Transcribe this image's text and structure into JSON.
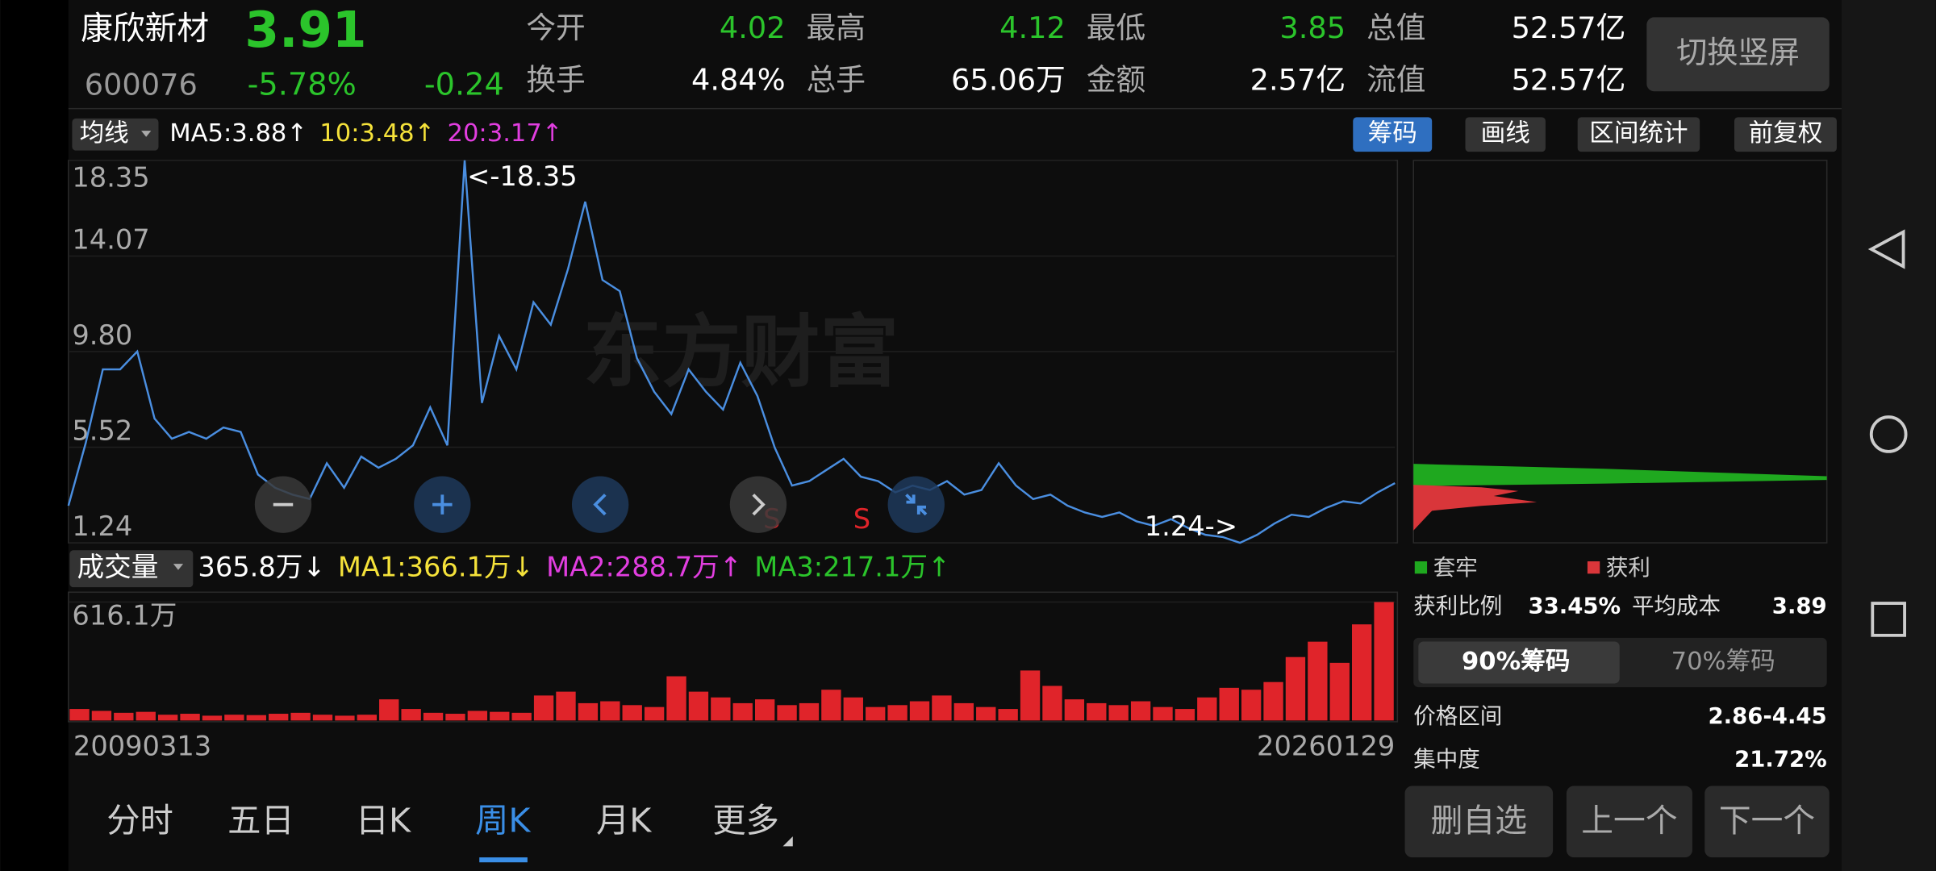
{
  "header": {
    "name": "康欣新材",
    "price": "3.91",
    "code": "600076",
    "change_pct": "-5.78%",
    "change": "-0.24",
    "switch_button": "切换竖屏",
    "stats": [
      {
        "label": "今开",
        "value": "4.02"
      },
      {
        "label": "最高",
        "value": "4.12"
      },
      {
        "label": "最低",
        "value": "3.85"
      },
      {
        "label": "总值",
        "value": "52.57亿"
      },
      {
        "label": "换手",
        "value": "4.84%"
      },
      {
        "label": "总手",
        "value": "65.06万"
      },
      {
        "label": "金额",
        "value": "2.57亿"
      },
      {
        "label": "流值",
        "value": "52.57亿"
      }
    ]
  },
  "toolbar": {
    "indicator": "均线",
    "ma": [
      {
        "text": "MA5:3.88↑",
        "color": "#ffffff"
      },
      {
        "text": "10:3.48↑",
        "color": "#f5e23a"
      },
      {
        "text": "20:3.17↑",
        "color": "#e23ee0"
      }
    ],
    "buttons": [
      "筹码",
      "画线",
      "区间统计",
      "前复权"
    ]
  },
  "chart_data": {
    "type": "line",
    "color": "#4a8ee0",
    "ylim": [
      1.24,
      18.35
    ],
    "yticks": [
      18.35,
      14.07,
      {
        "value": 9.8,
        "label": "9.80"
      },
      5.52,
      1.24
    ],
    "values": [
      2.9,
      5.7,
      9.0,
      9.0,
      9.8,
      6.8,
      5.9,
      6.2,
      5.9,
      6.4,
      6.2,
      4.3,
      3.7,
      3.4,
      3.2,
      4.8,
      3.7,
      5.1,
      4.6,
      5.0,
      5.6,
      7.3,
      5.6,
      18.35,
      7.5,
      10.5,
      9.0,
      12.0,
      11.0,
      13.5,
      16.5,
      13.0,
      12.5,
      9.5,
      8.0,
      7.0,
      9.0,
      8.0,
      7.2,
      9.3,
      7.8,
      5.5,
      3.8,
      4.0,
      4.5,
      5.0,
      4.2,
      4.0,
      3.5,
      3.8,
      3.6,
      4.0,
      3.4,
      3.6,
      4.8,
      3.8,
      3.2,
      3.4,
      2.9,
      2.6,
      2.4,
      2.6,
      2.2,
      2.0,
      2.3,
      1.9,
      1.6,
      1.5,
      1.24,
      1.6,
      2.1,
      2.5,
      2.4,
      2.8,
      3.1,
      3.0,
      3.5,
      3.91
    ],
    "max_label": "<-18.35",
    "min_label": "1.24->",
    "signals": [
      "S",
      "S"
    ],
    "watermark": "东方财富"
  },
  "volume": {
    "type": "bar",
    "indicator": "成交量",
    "color": "#e0242a",
    "ylim": [
      0,
      616.1
    ],
    "yticks": [
      {
        "value": 616.1,
        "label": "616.1万"
      }
    ],
    "legend": [
      {
        "text": "365.8万↓",
        "color": "#ffffff"
      },
      {
        "text": "MA1:366.1万↓",
        "color": "#f5e23a"
      },
      {
        "text": "MA2:288.7万↑",
        "color": "#e23ee0"
      },
      {
        "text": "MA3:217.1万↑",
        "color": "#2bc42b"
      }
    ],
    "values": [
      60,
      50,
      40,
      45,
      30,
      35,
      25,
      30,
      28,
      35,
      40,
      30,
      25,
      30,
      110,
      60,
      40,
      35,
      50,
      45,
      40,
      130,
      150,
      90,
      100,
      80,
      70,
      230,
      150,
      120,
      90,
      110,
      80,
      90,
      160,
      120,
      70,
      80,
      100,
      130,
      90,
      70,
      60,
      260,
      180,
      110,
      90,
      80,
      100,
      70,
      60,
      120,
      170,
      160,
      200,
      330,
      410,
      300,
      500,
      616.1
    ],
    "x_labels": [
      "20090313",
      "20260129"
    ]
  },
  "chip_panel": {
    "legend": [
      "套牢",
      "获利"
    ],
    "profit_label": "获利比例",
    "profit": "33.45%",
    "cost_label": "平均成本",
    "cost": "3.89",
    "tabs": [
      "90%筹码",
      "70%筹码"
    ],
    "range_label": "价格区间",
    "range": "2.86-4.45",
    "concentration_label": "集中度",
    "concentration": "21.72%"
  },
  "tabs": [
    "分时",
    "五日",
    "日K",
    "周K",
    "月K",
    "更多"
  ],
  "buttons": [
    "删自选",
    "上一个",
    "下一个"
  ]
}
